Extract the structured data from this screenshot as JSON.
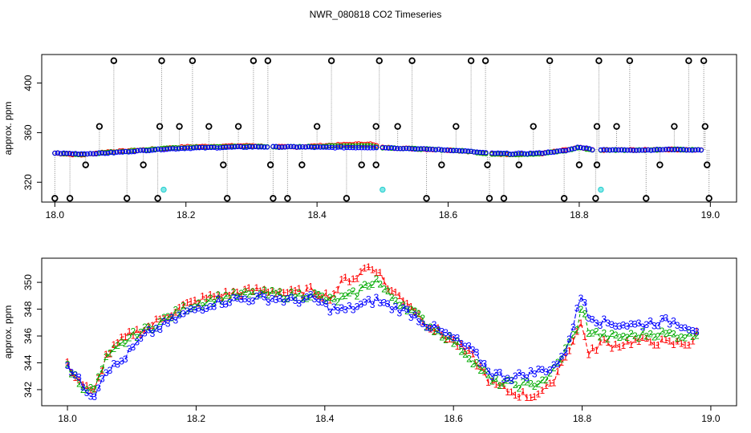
{
  "chart_data": [
    {
      "type": "scatter",
      "title": "NWR_080818  CO2 Timeseries",
      "xlabel": "",
      "ylabel": "approx. ppm",
      "xlim": [
        17.98,
        19.04
      ],
      "ylim": [
        304,
        423
      ],
      "xticks": [
        18.0,
        18.2,
        18.4,
        18.6,
        18.8,
        19.0
      ],
      "xtick_labels": [
        "18.0",
        "18.2",
        "18.4",
        "18.6",
        "18.8",
        "19.0"
      ],
      "yticks": [
        320,
        360,
        400
      ],
      "ytick_labels": [
        "320",
        "360",
        "400"
      ],
      "baseline_series": [
        {
          "name": "red",
          "color": "#ff0000",
          "x": [
            18.0,
            18.04,
            18.08,
            18.12,
            18.16,
            18.2,
            18.25,
            18.3,
            18.33,
            18.37,
            18.41,
            18.45,
            18.48,
            18.5,
            18.55,
            18.6,
            18.63,
            18.66,
            18.7,
            18.74,
            18.78,
            18.8,
            18.82,
            18.86,
            18.9,
            18.94,
            18.98
          ],
          "y": [
            343.5,
            342,
            344.5,
            345.5,
            347,
            348.5,
            349,
            349.5,
            348.5,
            348.5,
            349.5,
            350.5,
            351,
            348,
            347,
            346,
            345,
            343,
            342.5,
            343,
            346,
            348,
            346,
            346,
            346,
            346.5,
            346
          ]
        },
        {
          "name": "green",
          "color": "#00aa00",
          "x": [
            18.0,
            18.04,
            18.08,
            18.12,
            18.16,
            18.2,
            18.25,
            18.3,
            18.33,
            18.37,
            18.41,
            18.45,
            18.48,
            18.5,
            18.55,
            18.6,
            18.63,
            18.66,
            18.7,
            18.74,
            18.78,
            18.8,
            18.82,
            18.86,
            18.9,
            18.94,
            18.98
          ],
          "y": [
            343.5,
            342.5,
            344,
            345.5,
            347,
            348,
            348.5,
            349,
            348.5,
            348.5,
            349,
            349.5,
            349.5,
            348,
            347,
            346,
            345,
            343,
            342.5,
            343,
            345.5,
            348,
            346,
            346,
            346,
            346.5,
            346
          ]
        },
        {
          "name": "blue",
          "color": "#0000ff",
          "x": [
            18.0,
            18.04,
            18.08,
            18.12,
            18.16,
            18.2,
            18.25,
            18.3,
            18.33,
            18.37,
            18.41,
            18.45,
            18.48,
            18.5,
            18.55,
            18.6,
            18.63,
            18.66,
            18.7,
            18.74,
            18.78,
            18.8,
            18.82,
            18.86,
            18.9,
            18.94,
            18.98
          ],
          "y": [
            343.5,
            343,
            343.5,
            345,
            346.5,
            347.5,
            348,
            348.5,
            348.5,
            348.5,
            348,
            348,
            348,
            348,
            347,
            346,
            345,
            343.5,
            343,
            343.5,
            345.5,
            348.5,
            346.5,
            346,
            346,
            346.5,
            346
          ]
        }
      ],
      "outliers": [
        {
          "x": 18.0,
          "y": 307
        },
        {
          "x": 18.023,
          "y": 307
        },
        {
          "x": 18.047,
          "y": 334
        },
        {
          "x": 18.068,
          "y": 365
        },
        {
          "x": 18.09,
          "y": 418
        },
        {
          "x": 18.11,
          "y": 307
        },
        {
          "x": 18.135,
          "y": 334
        },
        {
          "x": 18.157,
          "y": 307
        },
        {
          "x": 18.16,
          "y": 365
        },
        {
          "x": 18.163,
          "y": 418
        },
        {
          "x": 18.19,
          "y": 365
        },
        {
          "x": 18.21,
          "y": 418
        },
        {
          "x": 18.235,
          "y": 365
        },
        {
          "x": 18.263,
          "y": 307
        },
        {
          "x": 18.257,
          "y": 334
        },
        {
          "x": 18.28,
          "y": 365
        },
        {
          "x": 18.303,
          "y": 418
        },
        {
          "x": 18.325,
          "y": 418
        },
        {
          "x": 18.329,
          "y": 334
        },
        {
          "x": 18.333,
          "y": 307
        },
        {
          "x": 18.355,
          "y": 307
        },
        {
          "x": 18.377,
          "y": 334
        },
        {
          "x": 18.4,
          "y": 365
        },
        {
          "x": 18.422,
          "y": 418
        },
        {
          "x": 18.445,
          "y": 307
        },
        {
          "x": 18.468,
          "y": 334
        },
        {
          "x": 18.49,
          "y": 365
        },
        {
          "x": 18.49,
          "y": 334
        },
        {
          "x": 18.495,
          "y": 418
        },
        {
          "x": 18.523,
          "y": 365
        },
        {
          "x": 18.545,
          "y": 418
        },
        {
          "x": 18.567,
          "y": 307
        },
        {
          "x": 18.59,
          "y": 334
        },
        {
          "x": 18.612,
          "y": 365
        },
        {
          "x": 18.635,
          "y": 418
        },
        {
          "x": 18.657,
          "y": 418
        },
        {
          "x": 18.66,
          "y": 334
        },
        {
          "x": 18.663,
          "y": 307
        },
        {
          "x": 18.685,
          "y": 307
        },
        {
          "x": 18.708,
          "y": 334
        },
        {
          "x": 18.73,
          "y": 365
        },
        {
          "x": 18.755,
          "y": 418
        },
        {
          "x": 18.777,
          "y": 307
        },
        {
          "x": 18.8,
          "y": 334
        },
        {
          "x": 18.825,
          "y": 307
        },
        {
          "x": 18.827,
          "y": 365
        },
        {
          "x": 18.83,
          "y": 418
        },
        {
          "x": 18.827,
          "y": 334
        },
        {
          "x": 18.857,
          "y": 365
        },
        {
          "x": 18.877,
          "y": 418
        },
        {
          "x": 18.902,
          "y": 307
        },
        {
          "x": 18.923,
          "y": 334
        },
        {
          "x": 18.945,
          "y": 365
        },
        {
          "x": 18.967,
          "y": 418
        },
        {
          "x": 18.99,
          "y": 418
        },
        {
          "x": 18.992,
          "y": 365
        },
        {
          "x": 18.995,
          "y": 334
        },
        {
          "x": 18.998,
          "y": 307
        }
      ],
      "cyan_points": [
        {
          "x": 18.166,
          "y": 314
        },
        {
          "x": 18.5,
          "y": 314
        },
        {
          "x": 18.833,
          "y": 314
        }
      ]
    },
    {
      "type": "line",
      "title": "",
      "xlabel": "",
      "ylabel": "approx. ppm",
      "xlim": [
        17.96,
        19.04
      ],
      "ylim": [
        340.8,
        351.8
      ],
      "xticks": [
        18.0,
        18.2,
        18.4,
        18.6,
        18.8,
        19.0
      ],
      "xtick_labels": [
        "18.0",
        "18.2",
        "18.4",
        "18.6",
        "18.8",
        "19.0"
      ],
      "yticks": [
        342,
        344,
        346,
        348,
        350
      ],
      "ytick_labels": [
        "342",
        "344",
        "346",
        "348",
        "350"
      ],
      "series": [
        {
          "name": "1",
          "label": "1",
          "color": "#ff0000",
          "x": [
            18.0,
            18.02,
            18.04,
            18.06,
            18.08,
            18.1,
            18.12,
            18.15,
            18.18,
            18.2,
            18.23,
            18.26,
            18.29,
            18.32,
            18.35,
            18.38,
            18.41,
            18.43,
            18.45,
            18.465,
            18.48,
            18.5,
            18.53,
            18.56,
            18.6,
            18.63,
            18.66,
            18.69,
            18.72,
            18.75,
            18.77,
            18.79,
            18.8,
            18.81,
            18.83,
            18.85,
            18.88,
            18.91,
            18.94,
            18.97,
            18.98
          ],
          "y": [
            343.8,
            342.6,
            341.6,
            344.5,
            345.5,
            346.2,
            346.5,
            347.4,
            348.2,
            348.6,
            349,
            349.2,
            349.4,
            349.4,
            349.2,
            349.4,
            348.9,
            350.2,
            350.4,
            351.2,
            351,
            349.5,
            348.5,
            346.8,
            345.6,
            344.4,
            342.4,
            341.8,
            341.5,
            342.2,
            344.2,
            346,
            347.2,
            344.5,
            345.6,
            345.3,
            345.6,
            345.6,
            345.4,
            345.5,
            346.3
          ]
        },
        {
          "name": "2",
          "label": "2",
          "color": "#00aa00",
          "x": [
            18.0,
            18.02,
            18.04,
            18.06,
            18.08,
            18.1,
            18.12,
            18.15,
            18.18,
            18.2,
            18.23,
            18.26,
            18.29,
            18.32,
            18.35,
            18.38,
            18.41,
            18.43,
            18.45,
            18.465,
            18.48,
            18.5,
            18.53,
            18.56,
            18.6,
            18.63,
            18.66,
            18.69,
            18.72,
            18.75,
            18.77,
            18.79,
            18.8,
            18.81,
            18.83,
            18.85,
            18.88,
            18.91,
            18.94,
            18.97,
            18.98
          ],
          "y": [
            343.8,
            342.4,
            341.8,
            344.2,
            345.2,
            346,
            346.4,
            347.2,
            348,
            348.4,
            348.8,
            349,
            349.1,
            349.1,
            349,
            349.1,
            348.6,
            348.8,
            349.2,
            349.8,
            350.2,
            349,
            348.1,
            346.8,
            345.6,
            344.2,
            342.6,
            342.4,
            342.3,
            343,
            344.6,
            346.3,
            348.2,
            346.4,
            346,
            345.9,
            346,
            346.2,
            346.1,
            346,
            346.4
          ]
        },
        {
          "name": "3",
          "label": "3",
          "color": "#0000ff",
          "x": [
            18.0,
            18.02,
            18.04,
            18.06,
            18.08,
            18.1,
            18.12,
            18.15,
            18.18,
            18.2,
            18.23,
            18.26,
            18.29,
            18.32,
            18.35,
            18.38,
            18.41,
            18.43,
            18.45,
            18.465,
            18.48,
            18.5,
            18.53,
            18.56,
            18.6,
            18.63,
            18.66,
            18.69,
            18.72,
            18.75,
            18.77,
            18.79,
            18.8,
            18.81,
            18.83,
            18.85,
            18.88,
            18.91,
            18.94,
            18.97,
            18.98
          ],
          "y": [
            343.9,
            342.5,
            341.5,
            343.5,
            343.9,
            345,
            346,
            346.8,
            347.6,
            348,
            348.5,
            348.7,
            348.8,
            348.8,
            348.6,
            348.8,
            348,
            347.9,
            348.2,
            348.4,
            348.7,
            348.2,
            347.8,
            346.8,
            345.8,
            344.8,
            343.2,
            342.9,
            343.2,
            343.6,
            344.3,
            347.5,
            349.2,
            347.6,
            347,
            346.9,
            346.8,
            347,
            347.1,
            346.6,
            346.5
          ]
        }
      ]
    }
  ]
}
